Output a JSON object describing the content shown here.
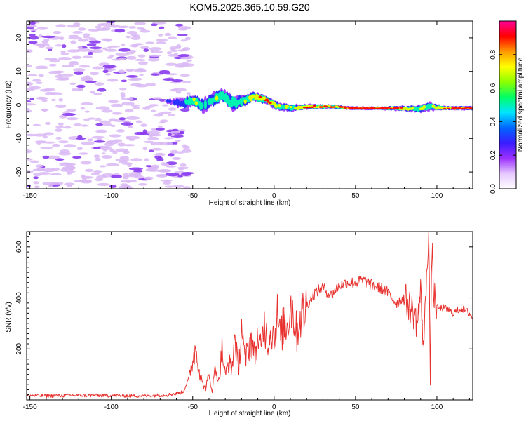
{
  "title": "KOM5.2025.365.10.59.G20",
  "colors": {
    "snr_line": "#e8322f",
    "speckle": "#d9b8f5",
    "speckle_strong": "#8a3cf0",
    "axis": "#000000"
  },
  "chart_data": [
    {
      "type": "heatmap",
      "name": "spectrogram",
      "title": "KOM5.2025.365.10.59.G20",
      "xlabel": "Height of straight line (km)",
      "ylabel": "Frequency (Hz)",
      "xlim": [
        -152,
        122
      ],
      "ylim": [
        -25,
        25
      ],
      "xticks": [
        -150,
        -100,
        -50,
        0,
        50,
        100
      ],
      "xtick_labels": [
        "-150",
        "-100",
        "-50",
        "0",
        "50",
        "100"
      ],
      "yticks": [
        -20,
        -10,
        0,
        10,
        20
      ],
      "ytick_labels": [
        "-20",
        "-10",
        "0",
        "10",
        "20"
      ],
      "colorbar": {
        "label": "Normalized spectral amplitude",
        "range": [
          0,
          1
        ],
        "ticks": [
          0,
          0.2,
          0.4,
          0.6,
          0.8
        ],
        "tick_labels": [
          "0.0",
          "0.2",
          "0.4",
          "0.6",
          "0.8"
        ],
        "colormap": [
          "#ffffff",
          "#e6c8ff",
          "#9b30ff",
          "#3a1cff",
          "#0066ff",
          "#00e5ff",
          "#00ff66",
          "#8cff00",
          "#ffff00",
          "#ff9900",
          "#ff0000",
          "#ff0099"
        ]
      },
      "signal_track": [
        {
          "x": -66,
          "f": 1.0,
          "w": 1.5,
          "a": 0.15
        },
        {
          "x": -55,
          "f": 0.5,
          "w": 3.0,
          "a": 0.4
        },
        {
          "x": -49,
          "f": 1.5,
          "w": 3.5,
          "a": 0.6
        },
        {
          "x": -44,
          "f": -0.5,
          "w": 4.0,
          "a": 0.45
        },
        {
          "x": -38,
          "f": 1.5,
          "w": 4.0,
          "a": 0.5
        },
        {
          "x": -32,
          "f": 3.0,
          "w": 3.5,
          "a": 0.65
        },
        {
          "x": -26,
          "f": 0.5,
          "w": 4.5,
          "a": 0.55
        },
        {
          "x": -20,
          "f": 1.0,
          "w": 3.5,
          "a": 0.5
        },
        {
          "x": -12,
          "f": 2.5,
          "w": 3.0,
          "a": 0.75
        },
        {
          "x": -5,
          "f": 1.5,
          "w": 2.5,
          "a": 0.9
        },
        {
          "x": 3,
          "f": -0.5,
          "w": 2.5,
          "a": 0.6
        },
        {
          "x": 12,
          "f": -1.0,
          "w": 2.0,
          "a": 0.65
        },
        {
          "x": 22,
          "f": -0.5,
          "w": 1.5,
          "a": 0.8
        },
        {
          "x": 35,
          "f": -0.5,
          "w": 1.2,
          "a": 0.85
        },
        {
          "x": 50,
          "f": -1.0,
          "w": 1.0,
          "a": 0.95
        },
        {
          "x": 65,
          "f": -1.0,
          "w": 1.0,
          "a": 0.95
        },
        {
          "x": 78,
          "f": -1.0,
          "w": 1.5,
          "a": 0.8
        },
        {
          "x": 88,
          "f": -1.2,
          "w": 2.0,
          "a": 0.7
        },
        {
          "x": 95,
          "f": -0.5,
          "w": 2.5,
          "a": 0.6
        },
        {
          "x": 105,
          "f": -1.0,
          "w": 1.2,
          "a": 0.85
        },
        {
          "x": 115,
          "f": -1.0,
          "w": 1.2,
          "a": 0.9
        },
        {
          "x": 122,
          "f": -1.0,
          "w": 1.2,
          "a": 0.9
        }
      ]
    },
    {
      "type": "line",
      "name": "snr",
      "xlabel": "Height of straight line (km)",
      "ylabel": "SNR (v/v)",
      "xlim": [
        -152,
        122
      ],
      "ylim": [
        0,
        660
      ],
      "xticks": [
        -150,
        -100,
        -50,
        0,
        50,
        100
      ],
      "xtick_labels": [
        "-150",
        "-100",
        "-50",
        "0",
        "50",
        "100"
      ],
      "yticks": [
        200,
        400,
        600
      ],
      "ytick_labels": [
        "200",
        "400",
        "600"
      ],
      "series": [
        {
          "name": "SNR",
          "x": [
            -152,
            -140,
            -120,
            -100,
            -80,
            -65,
            -56,
            -52,
            -50,
            -48,
            -46,
            -44,
            -42,
            -40,
            -38,
            -36,
            -34,
            -32,
            -30,
            -28,
            -26,
            -24,
            -22,
            -20,
            -18,
            -16,
            -14,
            -12,
            -10,
            -8,
            -6,
            -4,
            -2,
            0,
            2,
            4,
            6,
            8,
            10,
            12,
            14,
            16,
            18,
            20,
            25,
            30,
            35,
            40,
            45,
            50,
            55,
            60,
            65,
            70,
            75,
            80,
            85,
            88,
            90,
            92,
            94,
            95,
            96,
            97,
            98,
            100,
            105,
            110,
            115,
            120,
            122
          ],
          "y": [
            18,
            16,
            18,
            17,
            16,
            20,
            30,
            90,
            160,
            210,
            120,
            60,
            50,
            90,
            40,
            130,
            70,
            200,
            90,
            150,
            120,
            260,
            100,
            300,
            150,
            200,
            240,
            170,
            250,
            190,
            310,
            220,
            280,
            250,
            330,
            240,
            300,
            290,
            380,
            330,
            260,
            330,
            340,
            370,
            420,
            440,
            410,
            450,
            460,
            460,
            470,
            450,
            440,
            420,
            380,
            400,
            350,
            300,
            420,
            200,
            560,
            650,
            80,
            620,
            420,
            360,
            360,
            340,
            360,
            340,
            320
          ]
        }
      ]
    }
  ]
}
